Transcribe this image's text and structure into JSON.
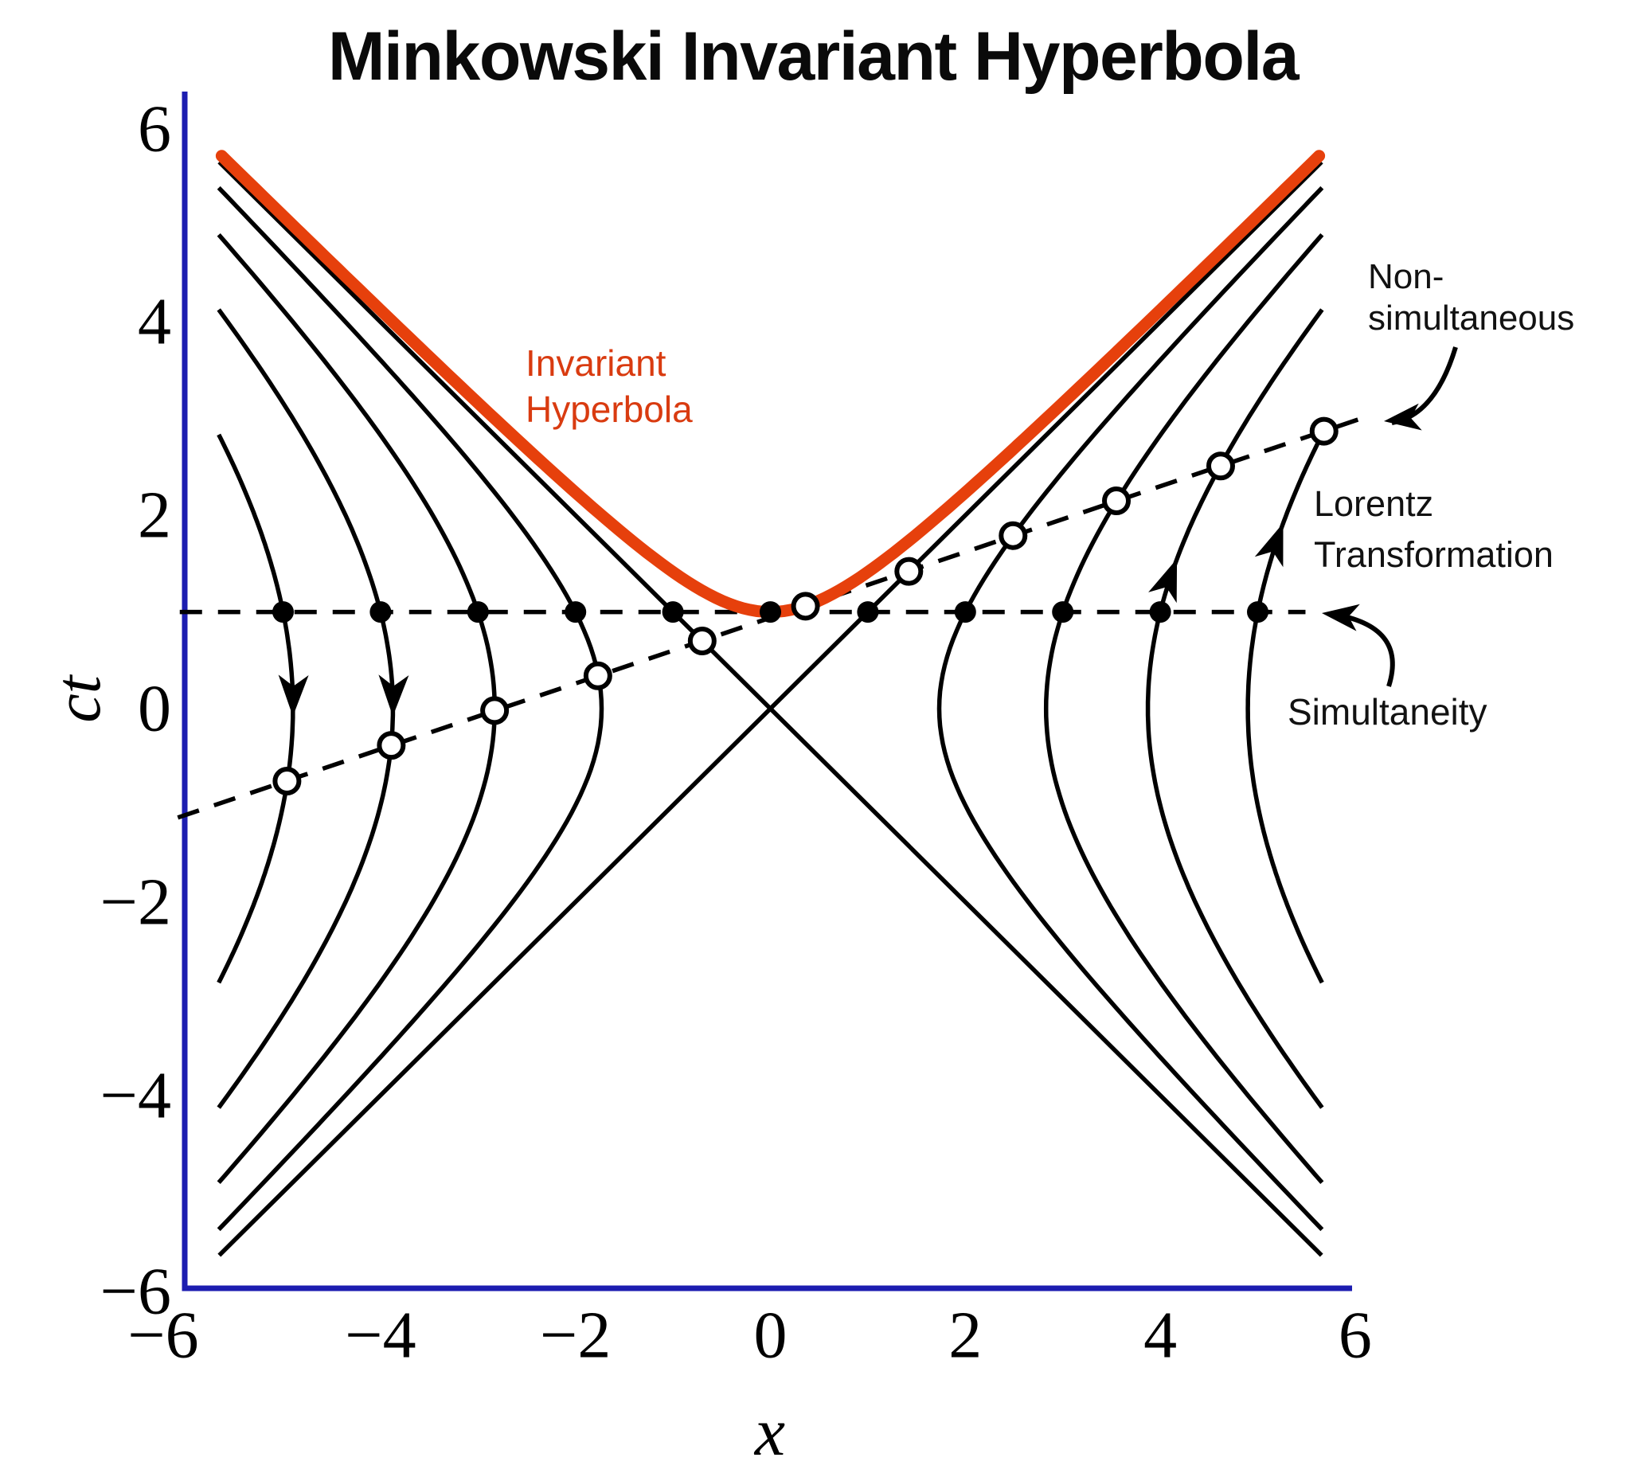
{
  "title": "Minkowski Invariant Hyperbola",
  "colors": {
    "background": "#FFFFFF",
    "axis": "#1C1DB0",
    "curves": "#000000",
    "invariant_curve": "#E6400C",
    "invariant_label": "#D93B10"
  },
  "axes": {
    "x_label": "x",
    "y_label": "ct",
    "x_ticks": [
      "−6",
      "−4",
      "−2",
      "0",
      "2",
      "4",
      "6"
    ],
    "x_tick_values": [
      -6,
      -4,
      -2,
      0,
      2,
      4,
      6
    ],
    "y_ticks": [
      "6",
      "4",
      "2",
      "0",
      "−2",
      "−4",
      "−6"
    ],
    "y_tick_values": [
      6,
      4,
      2,
      0,
      -2,
      -4,
      -6
    ],
    "x_range": [
      -6,
      6
    ],
    "y_range": [
      -6,
      6
    ]
  },
  "chart_data": {
    "type": "line",
    "title": "Minkowski Invariant Hyperbola",
    "xlabel": "x",
    "ylabel": "ct",
    "xlim": [
      -6,
      6
    ],
    "ylim": [
      -6,
      6
    ],
    "grid": false,
    "invariant_hyperbola": {
      "equation": "(ct)² − x² = 1",
      "branch": "upper",
      "vertex": [
        0,
        1
      ],
      "x_extent": [
        -5.63,
        5.63
      ]
    },
    "light_cone": {
      "equations": [
        "ct = x",
        "ct = −x"
      ],
      "extent": 5.655
    },
    "hyperbola_family": {
      "equation": "x² − (ct)² = n² − 1",
      "n_values": [
        2,
        3,
        4,
        5
      ],
      "constants": [
        3,
        8,
        15,
        24
      ],
      "branches": [
        "left",
        "right"
      ],
      "x_clip": 5.66
    },
    "simultaneity_line": {
      "ct": 1,
      "x_from": -6.06,
      "x_to": 5.49,
      "style": "dashed"
    },
    "non_simultaneous_line": {
      "equation": "ct = 1/γ + βx",
      "beta": 0.34,
      "intercept": 0.9404,
      "x_from": -6.08,
      "x_to": 6.06,
      "style": "dashed"
    },
    "simultaneous_events": [
      [
        -5,
        1
      ],
      [
        -4,
        1
      ],
      [
        -3,
        1
      ],
      [
        -2,
        1
      ],
      [
        -1,
        1
      ],
      [
        0,
        1
      ],
      [
        1,
        1
      ],
      [
        2,
        1
      ],
      [
        3,
        1
      ],
      [
        4,
        1
      ],
      [
        5,
        1
      ]
    ],
    "boosted_events": [
      [
        -4.96,
        -0.75
      ],
      [
        -3.89,
        -0.38
      ],
      [
        -2.83,
        -0.02
      ],
      [
        -1.77,
        0.34
      ],
      [
        -0.7,
        0.7
      ],
      [
        0.36,
        1.06
      ],
      [
        1.42,
        1.42
      ],
      [
        2.49,
        1.79
      ],
      [
        3.55,
        2.15
      ],
      [
        4.62,
        2.51
      ],
      [
        5.68,
        2.87
      ]
    ],
    "flow_arrows": [
      {
        "c": 24,
        "side": "left",
        "ct": -0.08,
        "direction": "down"
      },
      {
        "c": 15,
        "side": "left",
        "ct": -0.08,
        "direction": "down"
      },
      {
        "c": 15,
        "side": "right",
        "ct": 1.55,
        "direction": "up"
      },
      {
        "c": 24,
        "side": "right",
        "ct": 1.92,
        "direction": "up"
      }
    ]
  },
  "annotations": {
    "invariant_label": {
      "lines": [
        "Invariant",
        "Hyperbola"
      ]
    },
    "non_simultaneous_label": {
      "lines": [
        "Non-",
        "simultaneous"
      ]
    },
    "lorentz_label": {
      "lines": [
        "Lorentz",
        "Transformation"
      ]
    },
    "simultaneity_label": {
      "lines": [
        "Simultaneity"
      ]
    }
  }
}
